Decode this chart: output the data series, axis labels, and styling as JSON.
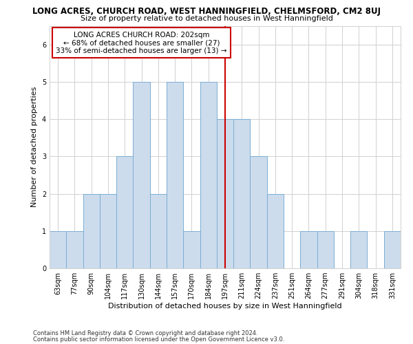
{
  "title_line1": "LONG ACRES, CHURCH ROAD, WEST HANNINGFIELD, CHELMSFORD, CM2 8UJ",
  "title_line2": "Size of property relative to detached houses in West Hanningfield",
  "xlabel": "Distribution of detached houses by size in West Hanningfield",
  "ylabel": "Number of detached properties",
  "bar_labels": [
    "63sqm",
    "77sqm",
    "90sqm",
    "104sqm",
    "117sqm",
    "130sqm",
    "144sqm",
    "157sqm",
    "170sqm",
    "184sqm",
    "197sqm",
    "211sqm",
    "224sqm",
    "237sqm",
    "251sqm",
    "264sqm",
    "277sqm",
    "291sqm",
    "304sqm",
    "318sqm",
    "331sqm"
  ],
  "bar_values": [
    1,
    1,
    2,
    2,
    3,
    5,
    2,
    5,
    1,
    5,
    4,
    4,
    3,
    2,
    0,
    1,
    1,
    0,
    1,
    0,
    1
  ],
  "bar_color": "#ccdcec",
  "bar_edgecolor": "#7aadd4",
  "property_line_idx": 10.5,
  "annotation_title": "LONG ACRES CHURCH ROAD: 202sqm",
  "annotation_line2": "← 68% of detached houses are smaller (27)",
  "annotation_line3": "33% of semi-detached houses are larger (13) →",
  "annotation_box_color": "#ffffff",
  "annotation_box_edgecolor": "#cc0000",
  "vline_color": "#cc0000",
  "ylim": [
    0,
    6.5
  ],
  "yticks": [
    0,
    1,
    2,
    3,
    4,
    5,
    6
  ],
  "grid_color": "#d0d0d0",
  "footer_line1": "Contains HM Land Registry data © Crown copyright and database right 2024.",
  "footer_line2": "Contains public sector information licensed under the Open Government Licence v3.0.",
  "bg_color": "#ffffff",
  "title_fontsize": 8.5,
  "subtitle_fontsize": 8,
  "axis_label_fontsize": 8,
  "tick_fontsize": 7,
  "ylabel_fontsize": 8,
  "annot_fontsize": 7.5,
  "footer_fontsize": 6
}
